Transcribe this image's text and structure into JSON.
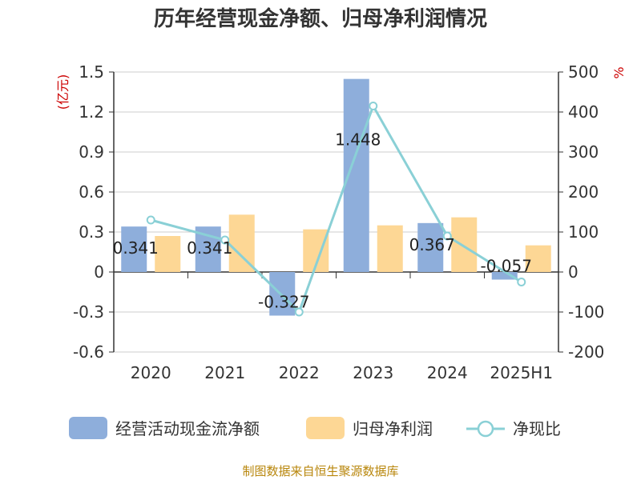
{
  "title": "历年经营现金净额、归母净利润情况",
  "source_note": "制图数据来自恒生聚源数据库",
  "chart_data": {
    "type": "bar",
    "categories": [
      "2020",
      "2021",
      "2022",
      "2023",
      "2024",
      "2025H1"
    ],
    "left_unit": "(亿元)",
    "right_unit": "%",
    "left_axis": {
      "min": -0.6,
      "max": 1.5,
      "ticks": [
        "1.5",
        "1.2",
        "0.9",
        "0.6",
        "0.3",
        "0",
        "-0.3",
        "-0.6"
      ]
    },
    "right_axis": {
      "min": -200,
      "max": 500,
      "ticks": [
        "500",
        "400",
        "300",
        "200",
        "100",
        "0",
        "-100",
        "-200"
      ]
    },
    "grid": true,
    "legend_position": "bottom",
    "series": [
      {
        "name": "经营活动现金流净额",
        "type": "bar",
        "axis": "left",
        "color": "#8eaedb",
        "values": [
          0.341,
          0.341,
          -0.327,
          1.448,
          0.367,
          -0.057
        ],
        "labels": [
          "0.341",
          "0.341",
          "-0.327",
          "1.448",
          "0.367",
          "-0.057"
        ]
      },
      {
        "name": "归母净利润",
        "type": "bar",
        "axis": "left",
        "color": "#fdd795",
        "values": [
          0.27,
          0.43,
          0.32,
          0.35,
          0.41,
          0.2
        ]
      },
      {
        "name": "净现比",
        "type": "line",
        "axis": "right",
        "color": "#8ad0d6",
        "values": [
          130,
          80,
          -100,
          415,
          90,
          -25
        ]
      }
    ]
  }
}
